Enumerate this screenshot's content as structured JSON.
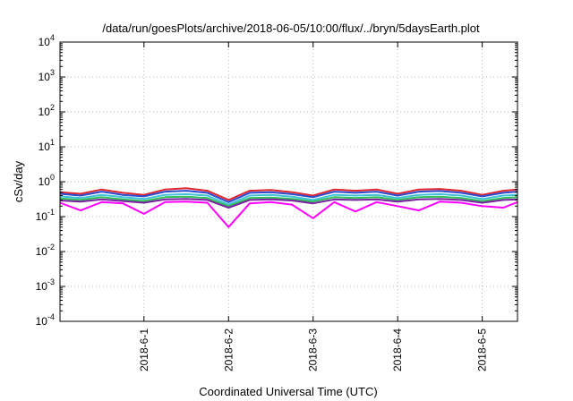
{
  "chart_data": {
    "type": "line",
    "title": "/data/run/goesPlots/archive/2018-06-05/10:00/flux/../bryn/5daysEarth.plot",
    "xlabel": "Coordinated Universal Time (UTC)",
    "ylabel": "cSv/day",
    "yscale": "log",
    "ylim": [
      0.0001,
      10000
    ],
    "y_ticks": [
      {
        "value": 0.0001,
        "mantissa": "10",
        "exponent": "-4"
      },
      {
        "value": 0.001,
        "mantissa": "10",
        "exponent": "-3"
      },
      {
        "value": 0.01,
        "mantissa": "10",
        "exponent": "-2"
      },
      {
        "value": 0.1,
        "mantissa": "10",
        "exponent": "-1"
      },
      {
        "value": 1,
        "mantissa": "10",
        "exponent": "0"
      },
      {
        "value": 10,
        "mantissa": "10",
        "exponent": "1"
      },
      {
        "value": 100,
        "mantissa": "10",
        "exponent": "2"
      },
      {
        "value": 1000,
        "mantissa": "10",
        "exponent": "3"
      },
      {
        "value": 10000,
        "mantissa": "10",
        "exponent": "4"
      }
    ],
    "x_ticks": [
      "2018-6-1",
      "2018-6-2",
      "2018-6-3",
      "2018-6-4",
      "2018-6-5"
    ],
    "xlim": [
      "2018-05-31 00:10",
      "2018-06-05 10:00"
    ],
    "grid": true,
    "series": [
      {
        "color": "#e0262e",
        "x": [
          "2018-05-31 00:10",
          "2018-05-31 06:00",
          "2018-05-31 12:00",
          "2018-05-31 18:00",
          "2018-06-01 00:00",
          "2018-06-01 06:00",
          "2018-06-01 12:00",
          "2018-06-01 18:00",
          "2018-06-02 00:00",
          "2018-06-02 06:00",
          "2018-06-02 12:00",
          "2018-06-02 18:00",
          "2018-06-03 00:00",
          "2018-06-03 06:00",
          "2018-06-03 12:00",
          "2018-06-03 18:00",
          "2018-06-04 00:00",
          "2018-06-04 06:00",
          "2018-06-04 12:00",
          "2018-06-04 18:00",
          "2018-06-05 00:00",
          "2018-06-05 06:00",
          "2018-06-05 10:00"
        ],
        "values": [
          0.5,
          0.45,
          0.6,
          0.48,
          0.42,
          0.6,
          0.65,
          0.55,
          0.3,
          0.55,
          0.58,
          0.5,
          0.4,
          0.6,
          0.55,
          0.6,
          0.45,
          0.6,
          0.62,
          0.55,
          0.42,
          0.55,
          0.6
        ]
      },
      {
        "color": "#2a4bd0",
        "x": [
          "2018-05-31 00:10",
          "2018-05-31 06:00",
          "2018-05-31 12:00",
          "2018-05-31 18:00",
          "2018-06-01 00:00",
          "2018-06-01 06:00",
          "2018-06-01 12:00",
          "2018-06-01 18:00",
          "2018-06-02 00:00",
          "2018-06-02 06:00",
          "2018-06-02 12:00",
          "2018-06-02 18:00",
          "2018-06-03 00:00",
          "2018-06-03 06:00",
          "2018-06-03 12:00",
          "2018-06-03 18:00",
          "2018-06-04 00:00",
          "2018-06-04 06:00",
          "2018-06-04 12:00",
          "2018-06-04 18:00",
          "2018-06-05 00:00",
          "2018-06-05 06:00",
          "2018-06-05 10:00"
        ],
        "values": [
          0.45,
          0.4,
          0.52,
          0.42,
          0.38,
          0.52,
          0.55,
          0.48,
          0.26,
          0.48,
          0.5,
          0.44,
          0.36,
          0.52,
          0.48,
          0.52,
          0.4,
          0.52,
          0.54,
          0.48,
          0.38,
          0.48,
          0.52
        ]
      },
      {
        "color": "#3ec0d8",
        "x": [
          "2018-05-31 00:10",
          "2018-05-31 06:00",
          "2018-05-31 12:00",
          "2018-05-31 18:00",
          "2018-06-01 00:00",
          "2018-06-01 06:00",
          "2018-06-01 12:00",
          "2018-06-01 18:00",
          "2018-06-02 00:00",
          "2018-06-02 06:00",
          "2018-06-02 12:00",
          "2018-06-02 18:00",
          "2018-06-03 00:00",
          "2018-06-03 06:00",
          "2018-06-03 12:00",
          "2018-06-03 18:00",
          "2018-06-04 00:00",
          "2018-06-04 06:00",
          "2018-06-04 12:00",
          "2018-06-04 18:00",
          "2018-06-05 00:00",
          "2018-06-05 06:00",
          "2018-06-05 10:00"
        ],
        "values": [
          0.38,
          0.34,
          0.42,
          0.36,
          0.32,
          0.42,
          0.44,
          0.4,
          0.22,
          0.4,
          0.42,
          0.37,
          0.3,
          0.42,
          0.4,
          0.42,
          0.34,
          0.42,
          0.44,
          0.4,
          0.32,
          0.4,
          0.42
        ]
      },
      {
        "color": "#2fbf5a",
        "x": [
          "2018-05-31 00:10",
          "2018-05-31 06:00",
          "2018-05-31 12:00",
          "2018-05-31 18:00",
          "2018-06-01 00:00",
          "2018-06-01 06:00",
          "2018-06-01 12:00",
          "2018-06-01 18:00",
          "2018-06-02 00:00",
          "2018-06-02 06:00",
          "2018-06-02 12:00",
          "2018-06-02 18:00",
          "2018-06-03 00:00",
          "2018-06-03 06:00",
          "2018-06-03 12:00",
          "2018-06-03 18:00",
          "2018-06-04 00:00",
          "2018-06-04 06:00",
          "2018-06-04 12:00",
          "2018-06-04 18:00",
          "2018-06-05 00:00",
          "2018-06-05 06:00",
          "2018-06-05 10:00"
        ],
        "values": [
          0.33,
          0.3,
          0.36,
          0.31,
          0.28,
          0.36,
          0.37,
          0.34,
          0.2,
          0.34,
          0.35,
          0.32,
          0.27,
          0.36,
          0.34,
          0.36,
          0.3,
          0.36,
          0.37,
          0.34,
          0.28,
          0.34,
          0.36
        ]
      },
      {
        "color": "#7a1fa0",
        "x": [
          "2018-05-31 00:10",
          "2018-05-31 06:00",
          "2018-05-31 12:00",
          "2018-05-31 18:00",
          "2018-06-01 00:00",
          "2018-06-01 06:00",
          "2018-06-01 12:00",
          "2018-06-01 18:00",
          "2018-06-02 00:00",
          "2018-06-02 06:00",
          "2018-06-02 12:00",
          "2018-06-02 18:00",
          "2018-06-03 00:00",
          "2018-06-03 06:00",
          "2018-06-03 12:00",
          "2018-06-03 18:00",
          "2018-06-04 00:00",
          "2018-06-04 06:00",
          "2018-06-04 12:00",
          "2018-06-04 18:00",
          "2018-06-05 00:00",
          "2018-06-05 06:00",
          "2018-06-05 10:00"
        ],
        "values": [
          0.29,
          0.27,
          0.31,
          0.28,
          0.25,
          0.31,
          0.32,
          0.3,
          0.18,
          0.3,
          0.31,
          0.29,
          0.24,
          0.31,
          0.3,
          0.31,
          0.27,
          0.31,
          0.32,
          0.3,
          0.25,
          0.3,
          0.31
        ]
      },
      {
        "color": "#ff00ff",
        "x": [
          "2018-05-31 00:10",
          "2018-05-31 06:00",
          "2018-05-31 12:00",
          "2018-05-31 18:00",
          "2018-06-01 00:00",
          "2018-06-01 06:00",
          "2018-06-01 12:00",
          "2018-06-01 18:00",
          "2018-06-02 00:00",
          "2018-06-02 06:00",
          "2018-06-02 12:00",
          "2018-06-02 18:00",
          "2018-06-03 00:00",
          "2018-06-03 06:00",
          "2018-06-03 12:00",
          "2018-06-03 18:00",
          "2018-06-04 00:00",
          "2018-06-04 06:00",
          "2018-06-04 12:00",
          "2018-06-04 18:00",
          "2018-06-05 00:00",
          "2018-06-05 06:00",
          "2018-06-05 10:00"
        ],
        "values": [
          0.25,
          0.15,
          0.26,
          0.24,
          0.12,
          0.26,
          0.27,
          0.25,
          0.05,
          0.24,
          0.26,
          0.22,
          0.09,
          0.26,
          0.14,
          0.26,
          0.2,
          0.15,
          0.27,
          0.25,
          0.2,
          0.18,
          0.26
        ]
      }
    ]
  }
}
